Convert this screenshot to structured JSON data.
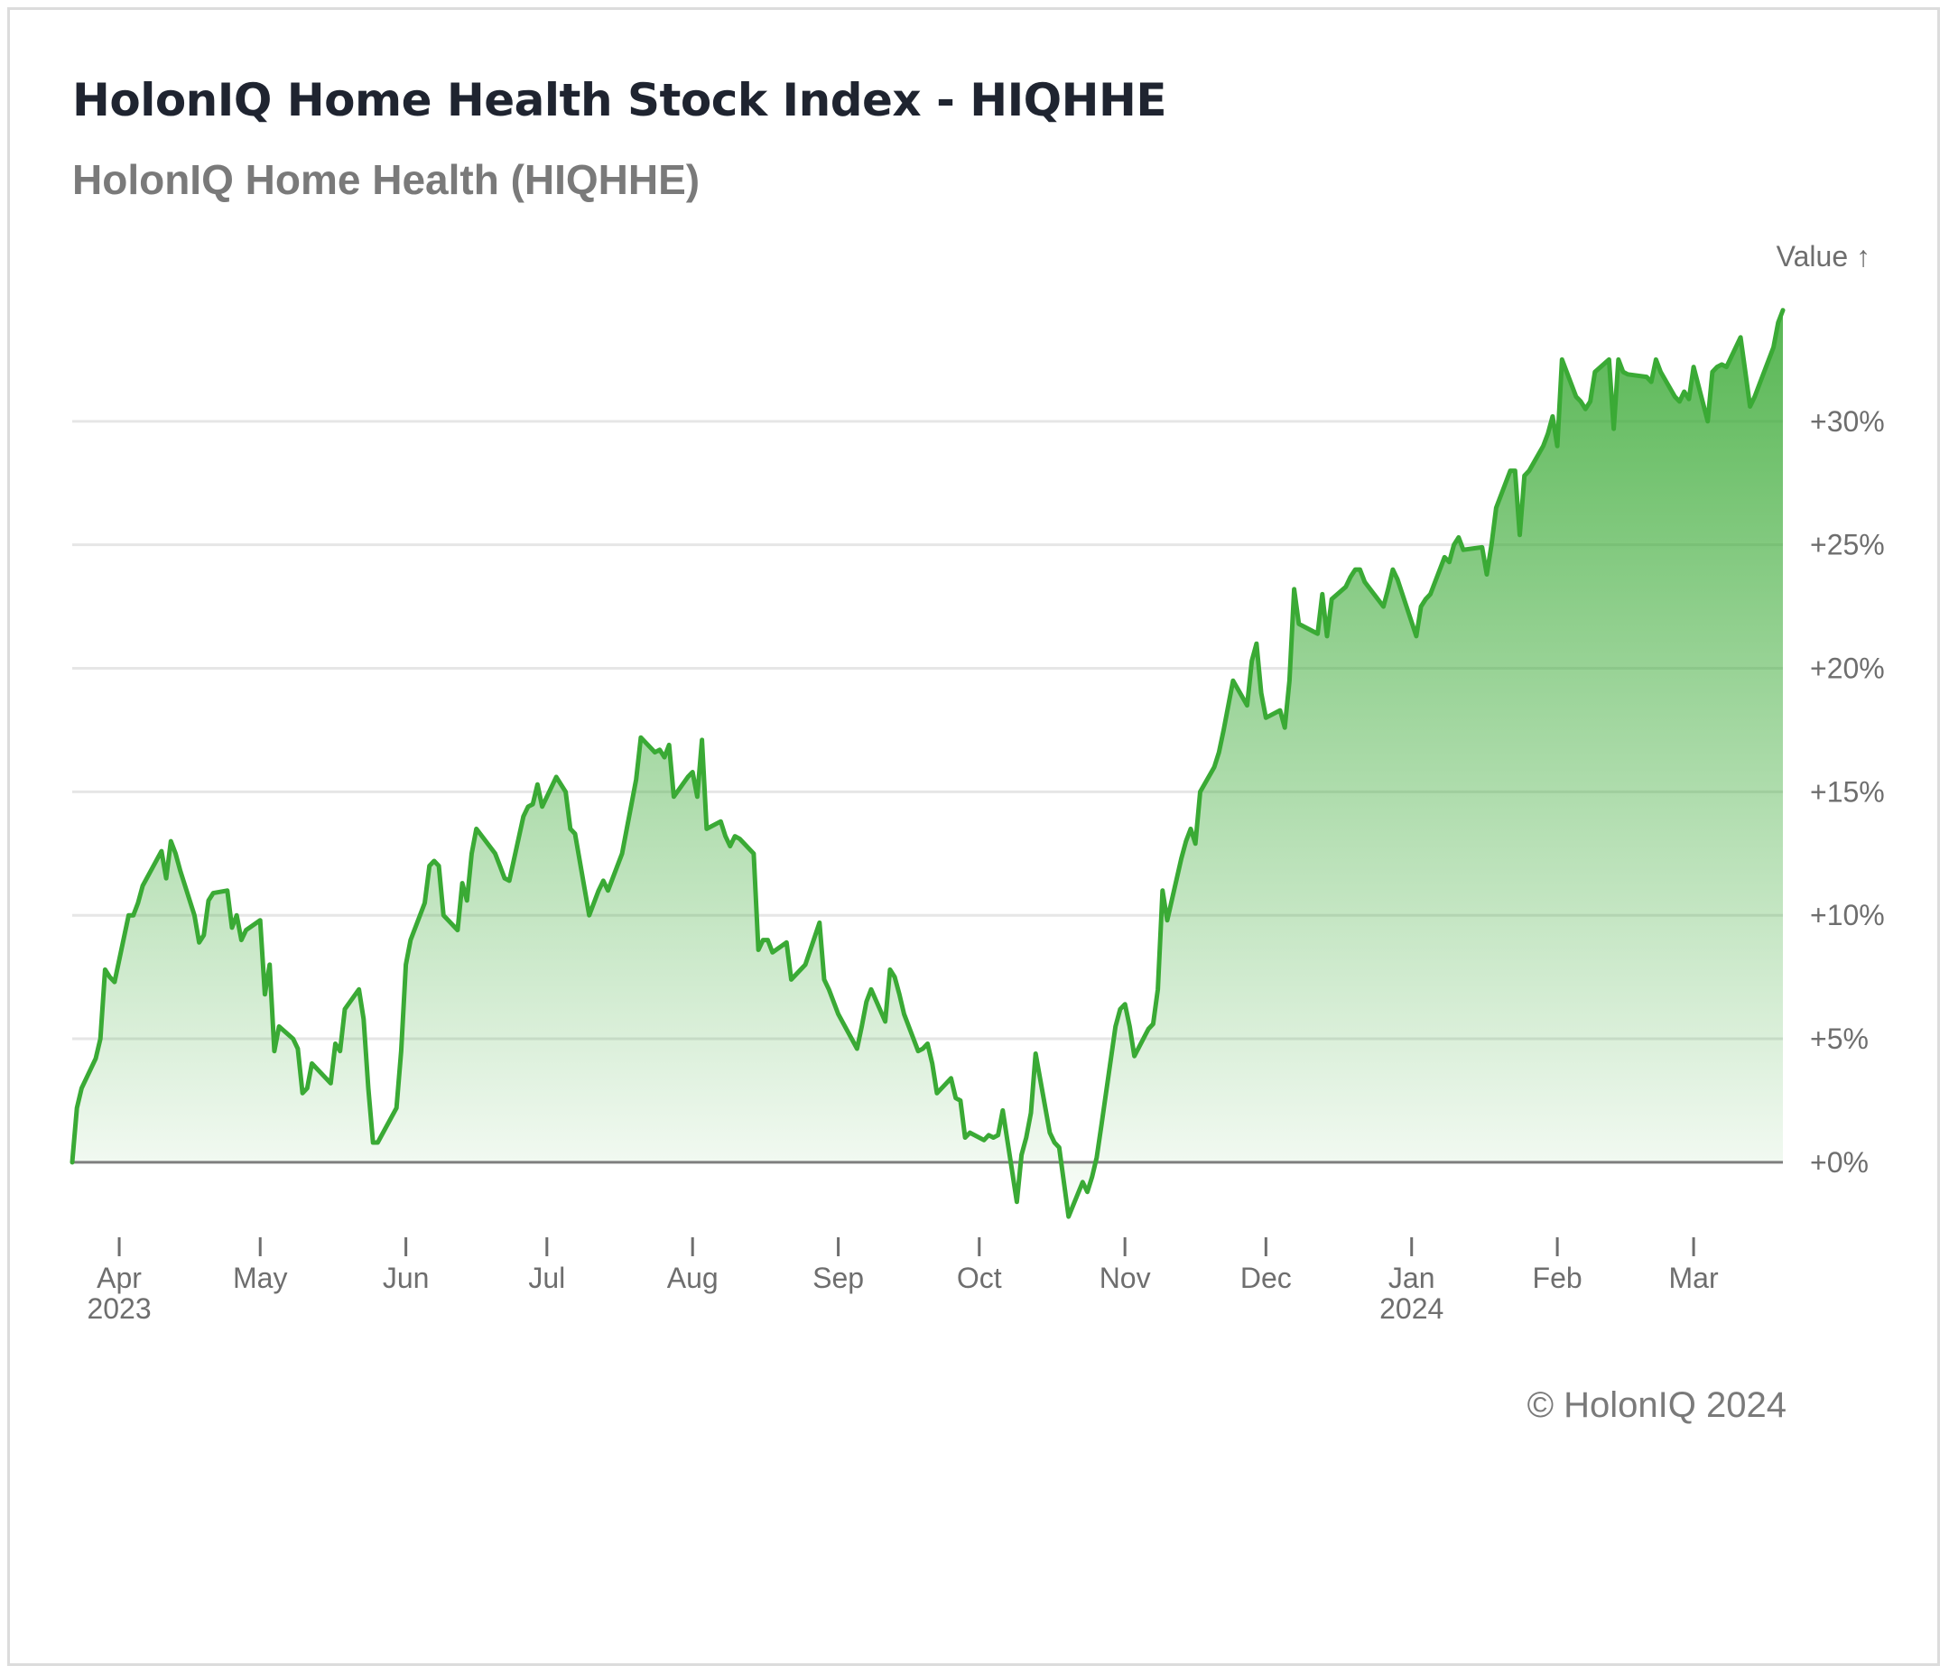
{
  "header": {
    "title": "HolonIQ Home Health Stock Index - HIQHHE",
    "subtitle": "HolonIQ Home Health (HIQHHE)"
  },
  "footer": {
    "copyright": "© HolonIQ 2024"
  },
  "colors": {
    "line": "#3aaa35",
    "area": "#3aaa35",
    "grid": "#e6e6e6",
    "baseline": "#7f7f7f"
  },
  "chart_data": {
    "type": "area",
    "ylabel": "Value ↑",
    "xlabel": "",
    "ylim": [
      -3,
      35
    ],
    "grid": true,
    "y_ticks": [
      {
        "value": 0,
        "label": "+0%"
      },
      {
        "value": 5,
        "label": "+5%"
      },
      {
        "value": 10,
        "label": "+10%"
      },
      {
        "value": 15,
        "label": "+15%"
      },
      {
        "value": 20,
        "label": "+20%"
      },
      {
        "value": 25,
        "label": "+25%"
      },
      {
        "value": 30,
        "label": "+30%"
      }
    ],
    "x_ticks": [
      {
        "date": "2023-04-01",
        "label": "Apr",
        "sublabel": "2023"
      },
      {
        "date": "2023-05-01",
        "label": "May",
        "sublabel": ""
      },
      {
        "date": "2023-06-01",
        "label": "Jun",
        "sublabel": ""
      },
      {
        "date": "2023-07-01",
        "label": "Jul",
        "sublabel": ""
      },
      {
        "date": "2023-08-01",
        "label": "Aug",
        "sublabel": ""
      },
      {
        "date": "2023-09-01",
        "label": "Sep",
        "sublabel": ""
      },
      {
        "date": "2023-10-01",
        "label": "Oct",
        "sublabel": ""
      },
      {
        "date": "2023-11-01",
        "label": "Nov",
        "sublabel": ""
      },
      {
        "date": "2023-12-01",
        "label": "Dec",
        "sublabel": ""
      },
      {
        "date": "2024-01-01",
        "label": "Jan",
        "sublabel": "2024"
      },
      {
        "date": "2024-02-01",
        "label": "Feb",
        "sublabel": ""
      },
      {
        "date": "2024-03-01",
        "label": "Mar",
        "sublabel": ""
      }
    ],
    "series": [
      {
        "points": [
          [
            "2023-03-22",
            0.0
          ],
          [
            "2023-03-23",
            2.2
          ],
          [
            "2023-03-24",
            3.0
          ],
          [
            "2023-03-27",
            4.2
          ],
          [
            "2023-03-28",
            5.0
          ],
          [
            "2023-03-29",
            7.8
          ],
          [
            "2023-03-30",
            7.5
          ],
          [
            "2023-03-31",
            7.3
          ],
          [
            "2023-04-03",
            10.0
          ],
          [
            "2023-04-04",
            10.0
          ],
          [
            "2023-04-05",
            10.5
          ],
          [
            "2023-04-06",
            11.2
          ],
          [
            "2023-04-10",
            12.6
          ],
          [
            "2023-04-11",
            11.5
          ],
          [
            "2023-04-12",
            13.0
          ],
          [
            "2023-04-13",
            12.5
          ],
          [
            "2023-04-14",
            11.8
          ],
          [
            "2023-04-17",
            10.0
          ],
          [
            "2023-04-18",
            8.9
          ],
          [
            "2023-04-19",
            9.2
          ],
          [
            "2023-04-20",
            10.6
          ],
          [
            "2023-04-21",
            10.9
          ],
          [
            "2023-04-24",
            11.0
          ],
          [
            "2023-04-25",
            9.5
          ],
          [
            "2023-04-26",
            10.0
          ],
          [
            "2023-04-27",
            9.0
          ],
          [
            "2023-04-28",
            9.4
          ],
          [
            "2023-05-01",
            9.8
          ],
          [
            "2023-05-02",
            6.8
          ],
          [
            "2023-05-03",
            8.0
          ],
          [
            "2023-05-04",
            4.5
          ],
          [
            "2023-05-05",
            5.5
          ],
          [
            "2023-05-08",
            5.0
          ],
          [
            "2023-05-09",
            4.6
          ],
          [
            "2023-05-10",
            2.8
          ],
          [
            "2023-05-11",
            3.0
          ],
          [
            "2023-05-12",
            4.0
          ],
          [
            "2023-05-15",
            3.4
          ],
          [
            "2023-05-16",
            3.2
          ],
          [
            "2023-05-17",
            4.8
          ],
          [
            "2023-05-18",
            4.5
          ],
          [
            "2023-05-19",
            6.2
          ],
          [
            "2023-05-22",
            7.0
          ],
          [
            "2023-05-23",
            5.8
          ],
          [
            "2023-05-24",
            3.0
          ],
          [
            "2023-05-25",
            0.8
          ],
          [
            "2023-05-26",
            0.8
          ],
          [
            "2023-05-30",
            2.2
          ],
          [
            "2023-05-31",
            4.5
          ],
          [
            "2023-06-01",
            8.0
          ],
          [
            "2023-06-02",
            9.0
          ],
          [
            "2023-06-05",
            10.5
          ],
          [
            "2023-06-06",
            12.0
          ],
          [
            "2023-06-07",
            12.2
          ],
          [
            "2023-06-08",
            12.0
          ],
          [
            "2023-06-09",
            10.0
          ],
          [
            "2023-06-12",
            9.4
          ],
          [
            "2023-06-13",
            11.3
          ],
          [
            "2023-06-14",
            10.6
          ],
          [
            "2023-06-15",
            12.5
          ],
          [
            "2023-06-16",
            13.5
          ],
          [
            "2023-06-20",
            12.5
          ],
          [
            "2023-06-21",
            12.0
          ],
          [
            "2023-06-22",
            11.5
          ],
          [
            "2023-06-23",
            11.4
          ],
          [
            "2023-06-26",
            14.0
          ],
          [
            "2023-06-27",
            14.4
          ],
          [
            "2023-06-28",
            14.5
          ],
          [
            "2023-06-29",
            15.3
          ],
          [
            "2023-06-30",
            14.4
          ],
          [
            "2023-07-03",
            15.6
          ],
          [
            "2023-07-05",
            15.0
          ],
          [
            "2023-07-06",
            13.5
          ],
          [
            "2023-07-07",
            13.3
          ],
          [
            "2023-07-10",
            10.0
          ],
          [
            "2023-07-11",
            10.5
          ],
          [
            "2023-07-12",
            11.0
          ],
          [
            "2023-07-13",
            11.4
          ],
          [
            "2023-07-14",
            11.0
          ],
          [
            "2023-07-17",
            12.5
          ],
          [
            "2023-07-18",
            13.5
          ],
          [
            "2023-07-19",
            14.5
          ],
          [
            "2023-07-20",
            15.5
          ],
          [
            "2023-07-21",
            17.2
          ],
          [
            "2023-07-24",
            16.6
          ],
          [
            "2023-07-25",
            16.7
          ],
          [
            "2023-07-26",
            16.4
          ],
          [
            "2023-07-27",
            16.9
          ],
          [
            "2023-07-28",
            14.8
          ],
          [
            "2023-07-31",
            15.6
          ],
          [
            "2023-08-01",
            15.8
          ],
          [
            "2023-08-02",
            14.8
          ],
          [
            "2023-08-03",
            17.1
          ],
          [
            "2023-08-04",
            13.5
          ],
          [
            "2023-08-07",
            13.8
          ],
          [
            "2023-08-08",
            13.2
          ],
          [
            "2023-08-09",
            12.8
          ],
          [
            "2023-08-10",
            13.2
          ],
          [
            "2023-08-11",
            13.1
          ],
          [
            "2023-08-14",
            12.5
          ],
          [
            "2023-08-15",
            8.6
          ],
          [
            "2023-08-16",
            9.0
          ],
          [
            "2023-08-17",
            9.0
          ],
          [
            "2023-08-18",
            8.5
          ],
          [
            "2023-08-21",
            8.9
          ],
          [
            "2023-08-22",
            7.4
          ],
          [
            "2023-08-23",
            7.6
          ],
          [
            "2023-08-24",
            7.8
          ],
          [
            "2023-08-25",
            8.0
          ],
          [
            "2023-08-28",
            9.7
          ],
          [
            "2023-08-29",
            7.4
          ],
          [
            "2023-08-30",
            7.0
          ],
          [
            "2023-08-31",
            6.5
          ],
          [
            "2023-09-01",
            6.0
          ],
          [
            "2023-09-05",
            4.6
          ],
          [
            "2023-09-06",
            5.5
          ],
          [
            "2023-09-07",
            6.5
          ],
          [
            "2023-09-08",
            7.0
          ],
          [
            "2023-09-11",
            5.7
          ],
          [
            "2023-09-12",
            7.8
          ],
          [
            "2023-09-13",
            7.5
          ],
          [
            "2023-09-14",
            6.8
          ],
          [
            "2023-09-15",
            6.0
          ],
          [
            "2023-09-18",
            4.5
          ],
          [
            "2023-09-19",
            4.6
          ],
          [
            "2023-09-20",
            4.8
          ],
          [
            "2023-09-21",
            4.0
          ],
          [
            "2023-09-22",
            2.8
          ],
          [
            "2023-09-25",
            3.4
          ],
          [
            "2023-09-26",
            2.6
          ],
          [
            "2023-09-27",
            2.5
          ],
          [
            "2023-09-28",
            1.0
          ],
          [
            "2023-09-29",
            1.2
          ],
          [
            "2023-10-02",
            0.9
          ],
          [
            "2023-10-03",
            1.1
          ],
          [
            "2023-10-04",
            1.0
          ],
          [
            "2023-10-05",
            1.1
          ],
          [
            "2023-10-06",
            2.1
          ],
          [
            "2023-10-09",
            -1.6
          ],
          [
            "2023-10-10",
            0.3
          ],
          [
            "2023-10-11",
            1.0
          ],
          [
            "2023-10-12",
            2.0
          ],
          [
            "2023-10-13",
            4.4
          ],
          [
            "2023-10-16",
            1.2
          ],
          [
            "2023-10-17",
            0.8
          ],
          [
            "2023-10-18",
            0.6
          ],
          [
            "2023-10-19",
            -0.8
          ],
          [
            "2023-10-20",
            -2.2
          ],
          [
            "2023-10-23",
            -0.8
          ],
          [
            "2023-10-24",
            -1.2
          ],
          [
            "2023-10-25",
            -0.6
          ],
          [
            "2023-10-26",
            0.2
          ],
          [
            "2023-10-27",
            1.5
          ],
          [
            "2023-10-30",
            5.5
          ],
          [
            "2023-10-31",
            6.2
          ],
          [
            "2023-11-01",
            6.4
          ],
          [
            "2023-11-02",
            5.5
          ],
          [
            "2023-11-03",
            4.3
          ],
          [
            "2023-11-06",
            5.4
          ],
          [
            "2023-11-07",
            5.6
          ],
          [
            "2023-11-08",
            7.0
          ],
          [
            "2023-11-09",
            11.0
          ],
          [
            "2023-11-10",
            9.8
          ],
          [
            "2023-11-13",
            12.3
          ],
          [
            "2023-11-14",
            13.0
          ],
          [
            "2023-11-15",
            13.5
          ],
          [
            "2023-11-16",
            12.9
          ],
          [
            "2023-11-17",
            15.0
          ],
          [
            "2023-11-20",
            16.0
          ],
          [
            "2023-11-21",
            16.6
          ],
          [
            "2023-11-22",
            17.5
          ],
          [
            "2023-11-24",
            19.5
          ],
          [
            "2023-11-27",
            18.5
          ],
          [
            "2023-11-28",
            20.3
          ],
          [
            "2023-11-29",
            21.0
          ],
          [
            "2023-11-30",
            19.0
          ],
          [
            "2023-12-01",
            18.0
          ],
          [
            "2023-12-04",
            18.3
          ],
          [
            "2023-12-05",
            17.6
          ],
          [
            "2023-12-06",
            19.5
          ],
          [
            "2023-12-07",
            23.2
          ],
          [
            "2023-12-08",
            21.8
          ],
          [
            "2023-12-11",
            21.5
          ],
          [
            "2023-12-12",
            21.4
          ],
          [
            "2023-12-13",
            23.0
          ],
          [
            "2023-12-14",
            21.3
          ],
          [
            "2023-12-15",
            22.8
          ],
          [
            "2023-12-18",
            23.3
          ],
          [
            "2023-12-19",
            23.7
          ],
          [
            "2023-12-20",
            24.0
          ],
          [
            "2023-12-21",
            24.0
          ],
          [
            "2023-12-22",
            23.5
          ],
          [
            "2023-12-26",
            22.5
          ],
          [
            "2023-12-27",
            23.2
          ],
          [
            "2023-12-28",
            24.0
          ],
          [
            "2023-12-29",
            23.6
          ],
          [
            "2024-01-02",
            21.3
          ],
          [
            "2024-01-03",
            22.5
          ],
          [
            "2024-01-04",
            22.8
          ],
          [
            "2024-01-05",
            23.0
          ],
          [
            "2024-01-08",
            24.5
          ],
          [
            "2024-01-09",
            24.3
          ],
          [
            "2024-01-10",
            25.0
          ],
          [
            "2024-01-11",
            25.3
          ],
          [
            "2024-01-12",
            24.8
          ],
          [
            "2024-01-16",
            24.9
          ],
          [
            "2024-01-17",
            23.8
          ],
          [
            "2024-01-18",
            25.0
          ],
          [
            "2024-01-19",
            26.5
          ],
          [
            "2024-01-22",
            28.0
          ],
          [
            "2024-01-23",
            28.0
          ],
          [
            "2024-01-24",
            25.4
          ],
          [
            "2024-01-25",
            27.8
          ],
          [
            "2024-01-26",
            28.0
          ],
          [
            "2024-01-29",
            29.0
          ],
          [
            "2024-01-30",
            29.5
          ],
          [
            "2024-01-31",
            30.2
          ],
          [
            "2024-02-01",
            29.0
          ],
          [
            "2024-02-02",
            32.5
          ],
          [
            "2024-02-05",
            31.0
          ],
          [
            "2024-02-06",
            30.8
          ],
          [
            "2024-02-07",
            30.5
          ],
          [
            "2024-02-08",
            30.8
          ],
          [
            "2024-02-09",
            32.0
          ],
          [
            "2024-02-12",
            32.5
          ],
          [
            "2024-02-13",
            29.7
          ],
          [
            "2024-02-14",
            32.5
          ],
          [
            "2024-02-15",
            32.0
          ],
          [
            "2024-02-16",
            31.9
          ],
          [
            "2024-02-20",
            31.8
          ],
          [
            "2024-02-21",
            31.6
          ],
          [
            "2024-02-22",
            32.5
          ],
          [
            "2024-02-23",
            32.0
          ],
          [
            "2024-02-26",
            31.0
          ],
          [
            "2024-02-27",
            30.8
          ],
          [
            "2024-02-28",
            31.2
          ],
          [
            "2024-02-29",
            30.9
          ],
          [
            "2024-03-01",
            32.2
          ],
          [
            "2024-03-04",
            30.0
          ],
          [
            "2024-03-05",
            32.0
          ],
          [
            "2024-03-06",
            32.2
          ],
          [
            "2024-03-07",
            32.3
          ],
          [
            "2024-03-08",
            32.2
          ],
          [
            "2024-03-11",
            33.4
          ],
          [
            "2024-03-12",
            32.0
          ],
          [
            "2024-03-13",
            30.6
          ],
          [
            "2024-03-14",
            31.0
          ],
          [
            "2024-03-15",
            31.5
          ],
          [
            "2024-03-18",
            33.0
          ],
          [
            "2024-03-19",
            34.0
          ],
          [
            "2024-03-20",
            34.5
          ]
        ]
      }
    ]
  }
}
